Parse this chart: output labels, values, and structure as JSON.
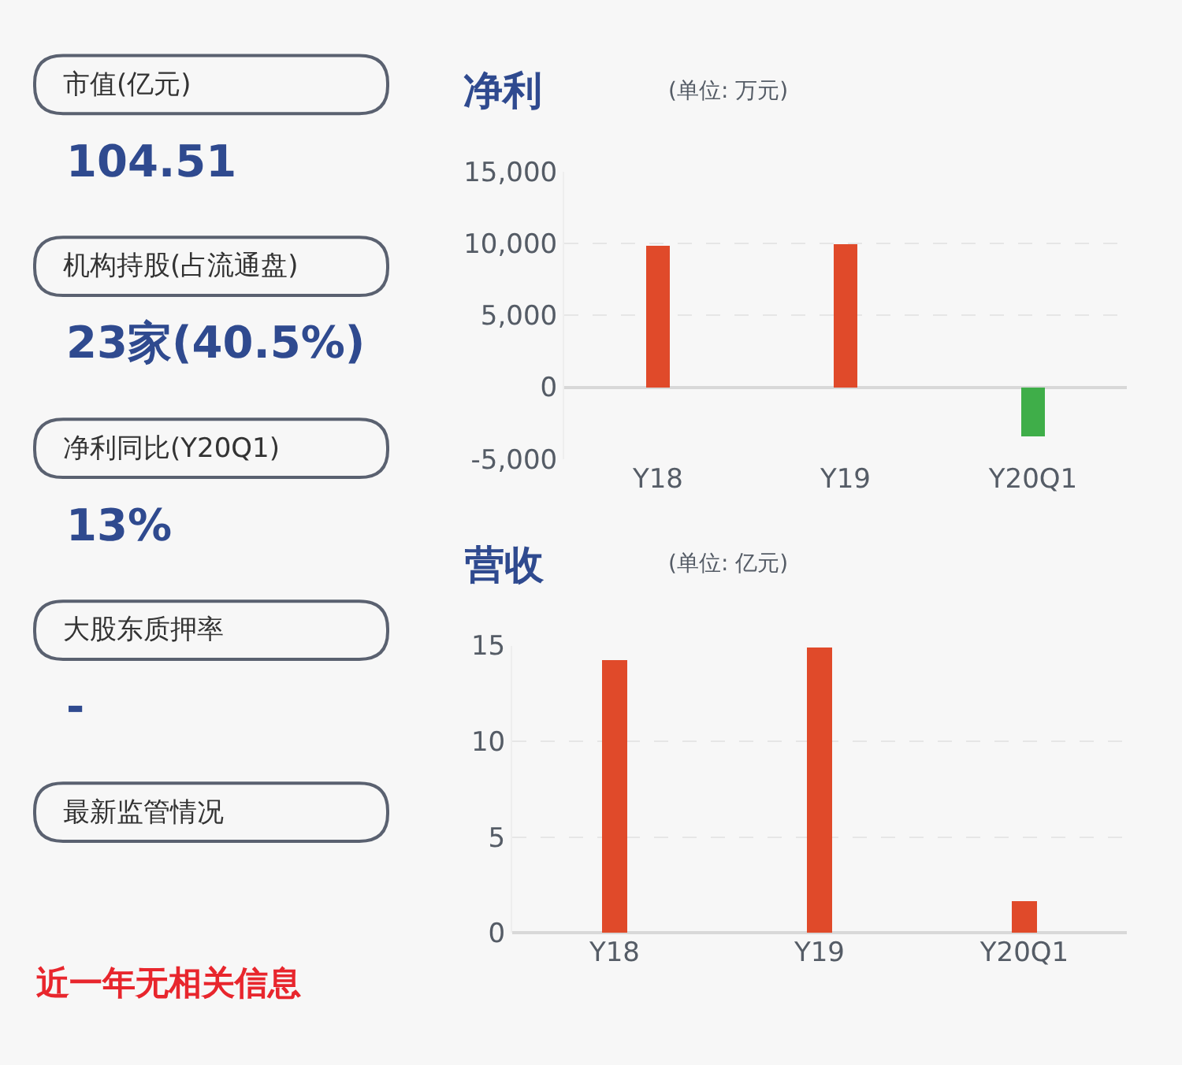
{
  "chart_data": [
    {
      "type": "other",
      "categories": [
        "市值(亿元)",
        "机构持股(占流通盘)",
        "净利同比(Y20Q1)",
        "大股东质押率",
        "最新监管情况"
      ],
      "value_labels": [
        "104.51",
        "23家(40.5%)",
        "13%",
        "-",
        null
      ],
      "annotations": [
        "近一年无相关信息"
      ]
    },
    {
      "type": "bar",
      "title": "净利",
      "subtitle": "(单位: 万元)",
      "categories": [
        "Y18",
        "Y19",
        "Y20Q1"
      ],
      "values": [
        9800,
        10000,
        -3400
      ],
      "colors": [
        "#e04a2a",
        "#e04a2a",
        "#3fae49"
      ],
      "ylim": [
        -5000,
        15000
      ],
      "yticks": [
        {
          "value": -5000,
          "label": "-5,000"
        },
        {
          "value": 0,
          "label": "0"
        },
        {
          "value": 5000,
          "label": "5,000"
        },
        {
          "value": 10000,
          "label": "10,000"
        },
        {
          "value": 15000,
          "label": "15,000"
        }
      ],
      "grid": "y"
    },
    {
      "type": "bar",
      "title": "营收",
      "subtitle": "(单位: 亿元)",
      "categories": [
        "Y18",
        "Y19",
        "Y20Q1"
      ],
      "values": [
        14.3,
        14.9,
        1.7
      ],
      "colors": [
        "#e04a2a",
        "#e04a2a",
        "#e04a2a"
      ],
      "ylim": [
        0,
        15
      ],
      "yticks": [
        0,
        5,
        10,
        15
      ],
      "grid": "y"
    }
  ]
}
